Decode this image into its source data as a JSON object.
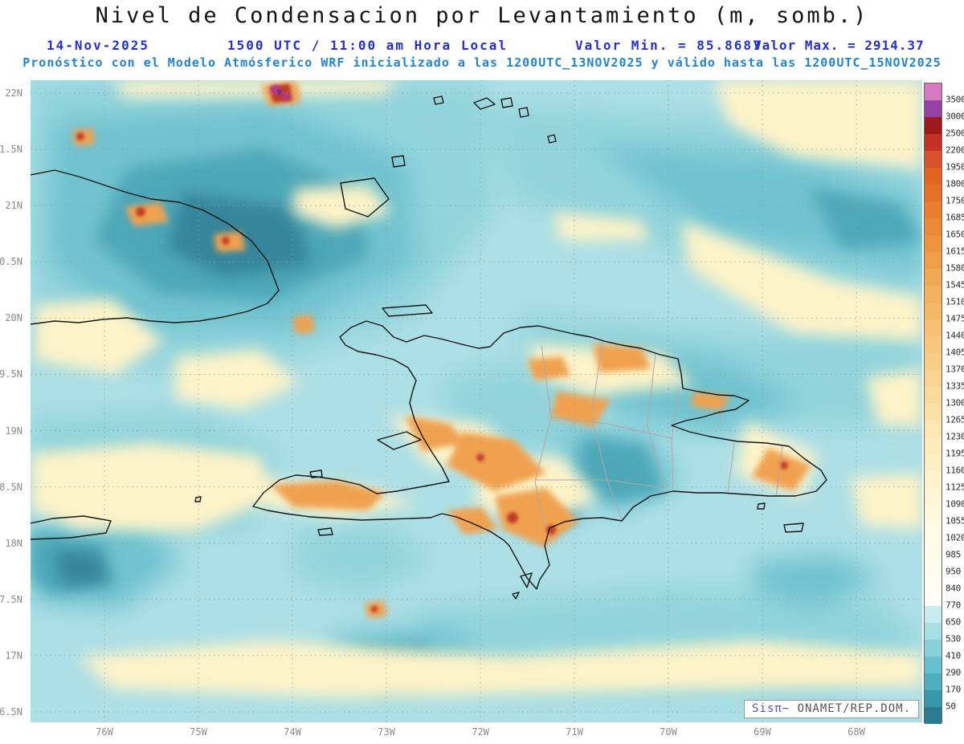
{
  "header": {
    "title": "Nivel de Condensacion por Levantamiento (m, somb.)",
    "date": "14-Nov-2025",
    "time": "1500 UTC / 11:00 am Hora Local",
    "min_label": "Valor Min. = 85.8687",
    "max_label": "Valor Max. = 2914.37",
    "forecast_line": "Pronóstico con el Modelo Atmósferico WRF inicializado a las 1200UTC_13NOV2025 y válido hasta las 1200UTC_15NOV2025"
  },
  "watermark": {
    "brand": "Sisπ−",
    "org": "ONAMET/REP.DOM."
  },
  "chart_data": {
    "type": "heatmap",
    "title": "Nivel de Condensacion por Levantamiento (m, somb.)",
    "variable": "Lifting Condensation Level",
    "units": "m",
    "valid_time": "14-Nov-2025 1500 UTC / 11:00 am Hora Local",
    "model": "WRF inicializado 1200UTC_13NOV2025, válido hasta 1200UTC_15NOV2025",
    "value_min": 85.8687,
    "value_max": 2914.37,
    "legend_position": "right",
    "grid": true,
    "x_axis": {
      "ticks": [
        "76W",
        "75W",
        "74W",
        "73W",
        "72W",
        "71W",
        "70W",
        "69W",
        "68W"
      ]
    },
    "y_axis": {
      "ticks": [
        "22N",
        "21.5N",
        "21N",
        "20.5N",
        "20N",
        "19.5N",
        "19N",
        "18.5N",
        "18N",
        "17.5N",
        "17N",
        "16.5N"
      ]
    },
    "levels": [
      3500,
      3000,
      2500,
      2200,
      1950,
      1800,
      1750,
      1685,
      1650,
      1615,
      1580,
      1545,
      1510,
      1475,
      1440,
      1405,
      1370,
      1335,
      1300,
      1265,
      1230,
      1195,
      1160,
      1125,
      1090,
      1055,
      1020,
      985,
      950,
      840,
      770,
      650,
      530,
      410,
      290,
      170,
      50
    ],
    "palette": [
      "#d878be",
      "#9440a4",
      "#9e1a1a",
      "#c62f23",
      "#d9512a",
      "#e0651e",
      "#e47226",
      "#e87e2e",
      "#eb8936",
      "#ee943f",
      "#f09e49",
      "#f2a753",
      "#f4b05d",
      "#f5b867",
      "#f7c072",
      "#f8c77c",
      "#f9ce87",
      "#fad592",
      "#fbdb9c",
      "#fce1a7",
      "#fce6b1",
      "#fdebbb",
      "#fdefc4",
      "#fef3cd",
      "#fef6d5",
      "#fef8dc",
      "#fffae2",
      "#fffbe8",
      "#fffced",
      "#fffdf1",
      "#fffef6",
      "#c9ecef",
      "#a8dfe6",
      "#88d0da",
      "#69c0cd",
      "#4eadbe",
      "#3897ab",
      "#2b7b92"
    ]
  }
}
